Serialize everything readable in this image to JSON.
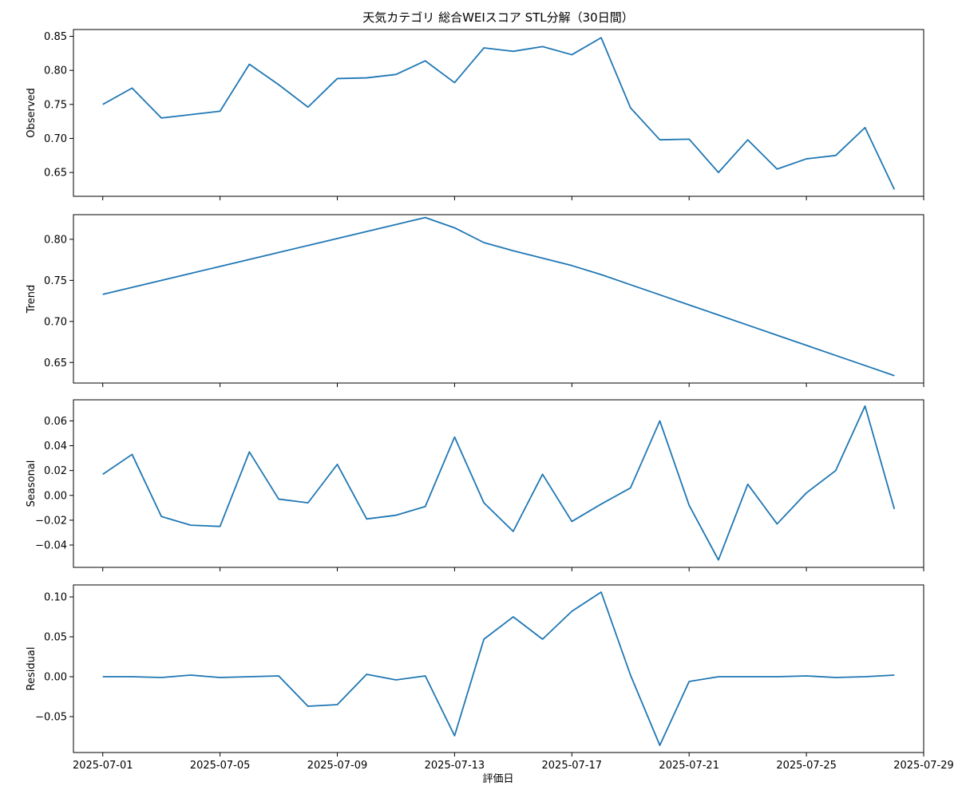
{
  "chart_data": {
    "type": "line",
    "title": "天気カテゴリ 総合WEIスコア STL分解（30日間）",
    "xlabel": "評価日",
    "line_color": "#1f77b4",
    "x": [
      "2025-07-01",
      "2025-07-02",
      "2025-07-03",
      "2025-07-04",
      "2025-07-05",
      "2025-07-06",
      "2025-07-07",
      "2025-07-08",
      "2025-07-09",
      "2025-07-10",
      "2025-07-11",
      "2025-07-12",
      "2025-07-13",
      "2025-07-14",
      "2025-07-15",
      "2025-07-16",
      "2025-07-17",
      "2025-07-18",
      "2025-07-19",
      "2025-07-20",
      "2025-07-21",
      "2025-07-22",
      "2025-07-23",
      "2025-07-24",
      "2025-07-25",
      "2025-07-26",
      "2025-07-27",
      "2025-07-28"
    ],
    "xlim": [
      "2025-06-30",
      "2025-07-29"
    ],
    "x_ticks": [
      "2025-07-01",
      "2025-07-05",
      "2025-07-09",
      "2025-07-13",
      "2025-07-17",
      "2025-07-21",
      "2025-07-25",
      "2025-07-29"
    ],
    "panels": [
      {
        "ylabel": "Observed",
        "ylim": [
          0.615,
          0.86
        ],
        "yticks": [
          0.65,
          0.7,
          0.75,
          0.8,
          0.85
        ],
        "values": [
          0.75,
          0.774,
          0.73,
          0.735,
          0.74,
          0.809,
          0.779,
          0.746,
          0.788,
          0.789,
          0.794,
          0.814,
          0.782,
          0.833,
          0.828,
          0.835,
          0.823,
          0.848,
          0.745,
          0.698,
          0.699,
          0.65,
          0.698,
          0.655,
          0.67,
          0.675,
          0.716,
          0.625
        ]
      },
      {
        "ylabel": "Trend",
        "ylim": [
          0.625,
          0.83
        ],
        "yticks": [
          0.65,
          0.7,
          0.75,
          0.8
        ],
        "values": [
          0.733,
          0.7415,
          0.75,
          0.7585,
          0.767,
          0.7755,
          0.784,
          0.7925,
          0.801,
          0.8095,
          0.818,
          0.8265,
          0.814,
          0.796,
          0.786,
          0.777,
          0.768,
          0.757,
          0.7447,
          0.7324,
          0.7201,
          0.7078,
          0.6955,
          0.6832,
          0.6709,
          0.6586,
          0.6463,
          0.634
        ]
      },
      {
        "ylabel": "Seasonal",
        "ylim": [
          -0.058,
          0.077
        ],
        "yticks": [
          -0.04,
          -0.02,
          0.0,
          0.02,
          0.04,
          0.06
        ],
        "values": [
          0.017,
          0.033,
          -0.017,
          -0.024,
          -0.025,
          0.035,
          -0.003,
          -0.006,
          0.025,
          -0.019,
          -0.016,
          -0.009,
          0.047,
          -0.006,
          -0.029,
          0.017,
          -0.021,
          -0.007,
          0.006,
          0.06,
          -0.008,
          -0.052,
          0.009,
          -0.023,
          0.002,
          0.02,
          0.072,
          -0.011
        ]
      },
      {
        "ylabel": "Residual",
        "ylim": [
          -0.095,
          0.115
        ],
        "yticks": [
          -0.05,
          0.0,
          0.05,
          0.1
        ],
        "values": [
          0.0,
          0.0,
          -0.001,
          0.002,
          -0.001,
          0.0,
          0.001,
          -0.037,
          -0.035,
          0.003,
          -0.004,
          0.001,
          -0.074,
          0.047,
          0.075,
          0.047,
          0.082,
          0.106,
          0.002,
          -0.086,
          -0.006,
          0.0,
          0.0,
          0.0,
          0.001,
          -0.001,
          0.0,
          0.002
        ]
      }
    ]
  }
}
